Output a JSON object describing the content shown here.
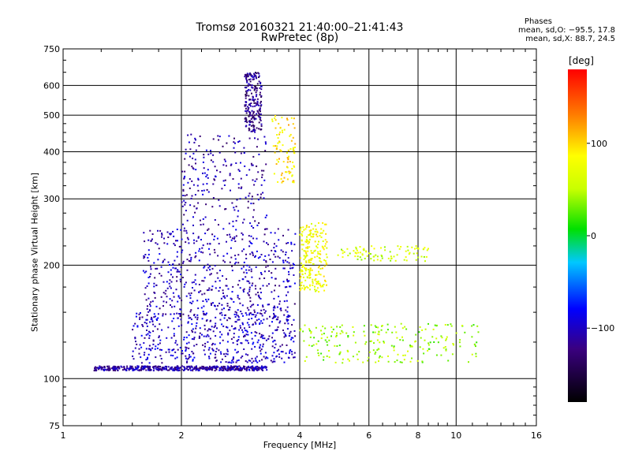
{
  "header": {
    "title_line1": "Tromsø 20160321 21:40:00–21:41:43",
    "title_line2": "RwPretec (8p)"
  },
  "stats": {
    "heading": "Phases",
    "o_mode": "mean, sd,O: −95.5, 17.8",
    "x_mode": "mean, sd,X:  88.7, 24.5"
  },
  "colorbar": {
    "title": "[deg]",
    "range": [
      -180,
      180
    ],
    "ticks": [
      100,
      0,
      -100
    ],
    "tick_labels": [
      "100",
      "0",
      "−100"
    ]
  },
  "chart_data": {
    "type": "scatter",
    "xlabel": "Frequency [MHz]",
    "ylabel": "Stationary phase Virtual Height [km]",
    "xscale": "log",
    "yscale": "log",
    "xlim": [
      1,
      16
    ],
    "ylim": [
      75,
      750
    ],
    "xticks": [
      1,
      2,
      4,
      6,
      8,
      10,
      16
    ],
    "xtick_labels": [
      "1",
      "2",
      "4",
      "6",
      "8",
      "10",
      "16"
    ],
    "xgrid": [
      2,
      4,
      6,
      8,
      10
    ],
    "yticks": [
      75,
      100,
      200,
      300,
      400,
      500,
      600,
      750
    ],
    "ytick_labels": [
      "75",
      "100",
      "200",
      "300",
      "400",
      "500",
      "600",
      "750"
    ],
    "ygrid": [
      100,
      200,
      300,
      400,
      500,
      600
    ],
    "grid": true,
    "color_variable": "phase [deg]",
    "clusters": [
      {
        "region": "E-layer base trace",
        "f": [
          1.2,
          3.3
        ],
        "h": [
          105,
          108
        ],
        "phase_deg": -110,
        "density": "high"
      },
      {
        "region": "O-mode F-trace (low)",
        "f": [
          1.5,
          3.9
        ],
        "h": [
          110,
          150
        ],
        "phase_deg": -100,
        "density": "high"
      },
      {
        "region": "O-mode F-trace (mid)",
        "f": [
          1.6,
          3.9
        ],
        "h": [
          150,
          250
        ],
        "phase_deg": -105,
        "density": "high"
      },
      {
        "region": "O-mode F-trace (high)",
        "f": [
          2.0,
          3.3
        ],
        "h": [
          250,
          450
        ],
        "phase_deg": -110,
        "density": "medium"
      },
      {
        "region": "O-mode cusp",
        "f": [
          2.9,
          3.2
        ],
        "h": [
          450,
          650
        ],
        "phase_deg": -120,
        "density": "medium"
      },
      {
        "region": "X-mode trace",
        "f": [
          3.4,
          3.9
        ],
        "h": [
          330,
          500
        ],
        "phase_deg": 95,
        "density": "low"
      },
      {
        "region": "X-mode band",
        "f": [
          4.0,
          4.7
        ],
        "h": [
          170,
          260
        ],
        "phase_deg": 80,
        "density": "medium"
      },
      {
        "region": "High-frequency echoes",
        "f": [
          4.0,
          11.5
        ],
        "h": [
          110,
          140
        ],
        "phase_deg": 40,
        "density": "medium"
      },
      {
        "region": "Scattered 220 km echoes",
        "f": [
          5.0,
          8.5
        ],
        "h": [
          205,
          225
        ],
        "phase_deg": 60,
        "density": "low"
      }
    ]
  }
}
